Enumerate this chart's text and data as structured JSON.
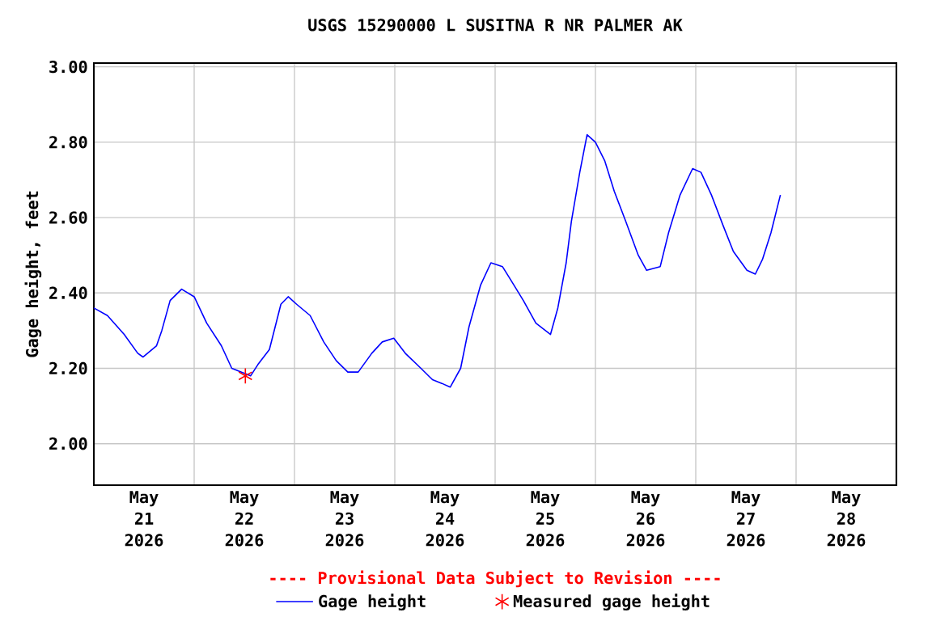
{
  "chart_data": {
    "type": "line",
    "title": "USGS 15290000 L SUSITNA R NR PALMER AK",
    "ylabel": "Gage height, feet",
    "annotations": [
      "---- Provisional Data Subject to Revision ----"
    ],
    "xlim": [
      "2026-05-21T00:00",
      "2026-05-29T00:00"
    ],
    "xticks": [
      {
        "value": "2026-05-21T12:00",
        "label": "May 21 2026"
      },
      {
        "value": "2026-05-22T12:00",
        "label": "May 22 2026"
      },
      {
        "value": "2026-05-23T12:00",
        "label": "May 23 2026"
      },
      {
        "value": "2026-05-24T12:00",
        "label": "May 24 2026"
      },
      {
        "value": "2026-05-25T12:00",
        "label": "May 25 2026"
      },
      {
        "value": "2026-05-26T12:00",
        "label": "May 26 2026"
      },
      {
        "value": "2026-05-27T12:00",
        "label": "May 27 2026"
      },
      {
        "value": "2026-05-28T12:00",
        "label": "May 28 2026"
      },
      {
        "value": "2026-05-22T00:00",
        "label": null
      },
      {
        "value": "2026-05-23T00:00",
        "label": null
      },
      {
        "value": "2026-05-24T00:00",
        "label": null
      },
      {
        "value": "2026-05-25T00:00",
        "label": null
      },
      {
        "value": "2026-05-26T00:00",
        "label": null
      },
      {
        "value": "2026-05-27T00:00",
        "label": null
      },
      {
        "value": "2026-05-28T00:00",
        "label": null
      }
    ],
    "ylim": [
      1.89,
      3.01
    ],
    "yticks": [
      {
        "value": 2.0,
        "label": "2.00"
      },
      {
        "value": 2.2,
        "label": "2.20"
      },
      {
        "value": 2.4,
        "label": "2.40"
      },
      {
        "value": 2.6,
        "label": "2.60"
      },
      {
        "value": 2.8,
        "label": "2.80"
      },
      {
        "value": 3.0,
        "label": "3.00"
      }
    ],
    "grid": true,
    "legend": "bottom",
    "series": [
      {
        "name": "Gage height",
        "color": "#0000ff",
        "marker": "none",
        "x": [
          "2026-05-21T00:00",
          "2026-05-21T03:15",
          "2026-05-21T07:15",
          "2026-05-21T10:30",
          "2026-05-21T11:45",
          "2026-05-21T15:00",
          "2026-05-21T16:15",
          "2026-05-21T18:15",
          "2026-05-21T21:00",
          "2026-05-22T00:00",
          "2026-05-22T03:00",
          "2026-05-22T06:30",
          "2026-05-22T09:00",
          "2026-05-22T13:30",
          "2026-05-22T15:15",
          "2026-05-22T18:00",
          "2026-05-22T20:45",
          "2026-05-22T22:30",
          "2026-05-23T00:30",
          "2026-05-23T03:45",
          "2026-05-23T07:00",
          "2026-05-23T10:00",
          "2026-05-23T12:45",
          "2026-05-23T15:15",
          "2026-05-23T18:30",
          "2026-05-23T21:00",
          "2026-05-23T23:45",
          "2026-05-24T02:30",
          "2026-05-24T06:15",
          "2026-05-24T09:00",
          "2026-05-24T11:15",
          "2026-05-24T13:15",
          "2026-05-24T15:45",
          "2026-05-24T17:45",
          "2026-05-24T20:30",
          "2026-05-24T23:00",
          "2026-05-25T01:45",
          "2026-05-25T04:00",
          "2026-05-25T06:45",
          "2026-05-25T09:45",
          "2026-05-25T13:15",
          "2026-05-25T15:00",
          "2026-05-25T17:00",
          "2026-05-25T18:15",
          "2026-05-25T20:15",
          "2026-05-25T22:00",
          "2026-05-26T00:00",
          "2026-05-26T02:15",
          "2026-05-26T04:30",
          "2026-05-26T07:15",
          "2026-05-26T10:15",
          "2026-05-26T12:15",
          "2026-05-26T15:30",
          "2026-05-26T17:30",
          "2026-05-26T20:15",
          "2026-05-26T23:15",
          "2026-05-27T01:15",
          "2026-05-27T03:45",
          "2026-05-27T06:30",
          "2026-05-27T09:00",
          "2026-05-27T12:15",
          "2026-05-27T14:15",
          "2026-05-27T16:00",
          "2026-05-27T18:00",
          "2026-05-27T20:15"
        ],
        "values": [
          2.36,
          2.34,
          2.29,
          2.24,
          2.23,
          2.26,
          2.3,
          2.38,
          2.41,
          2.39,
          2.32,
          2.26,
          2.2,
          2.18,
          2.21,
          2.25,
          2.37,
          2.39,
          2.37,
          2.34,
          2.27,
          2.22,
          2.19,
          2.19,
          2.24,
          2.27,
          2.28,
          2.24,
          2.2,
          2.17,
          2.16,
          2.15,
          2.2,
          2.31,
          2.42,
          2.48,
          2.47,
          2.43,
          2.38,
          2.32,
          2.29,
          2.36,
          2.48,
          2.59,
          2.72,
          2.82,
          2.8,
          2.75,
          2.67,
          2.59,
          2.5,
          2.46,
          2.47,
          2.56,
          2.66,
          2.73,
          2.72,
          2.66,
          2.58,
          2.51,
          2.46,
          2.45,
          2.49,
          2.56,
          2.66
        ]
      },
      {
        "name": "Measured gage height",
        "type": "scatter",
        "color": "#ff0000",
        "marker": "cross",
        "x": [
          "2026-05-22T12:15"
        ],
        "values": [
          2.18
        ]
      }
    ]
  }
}
